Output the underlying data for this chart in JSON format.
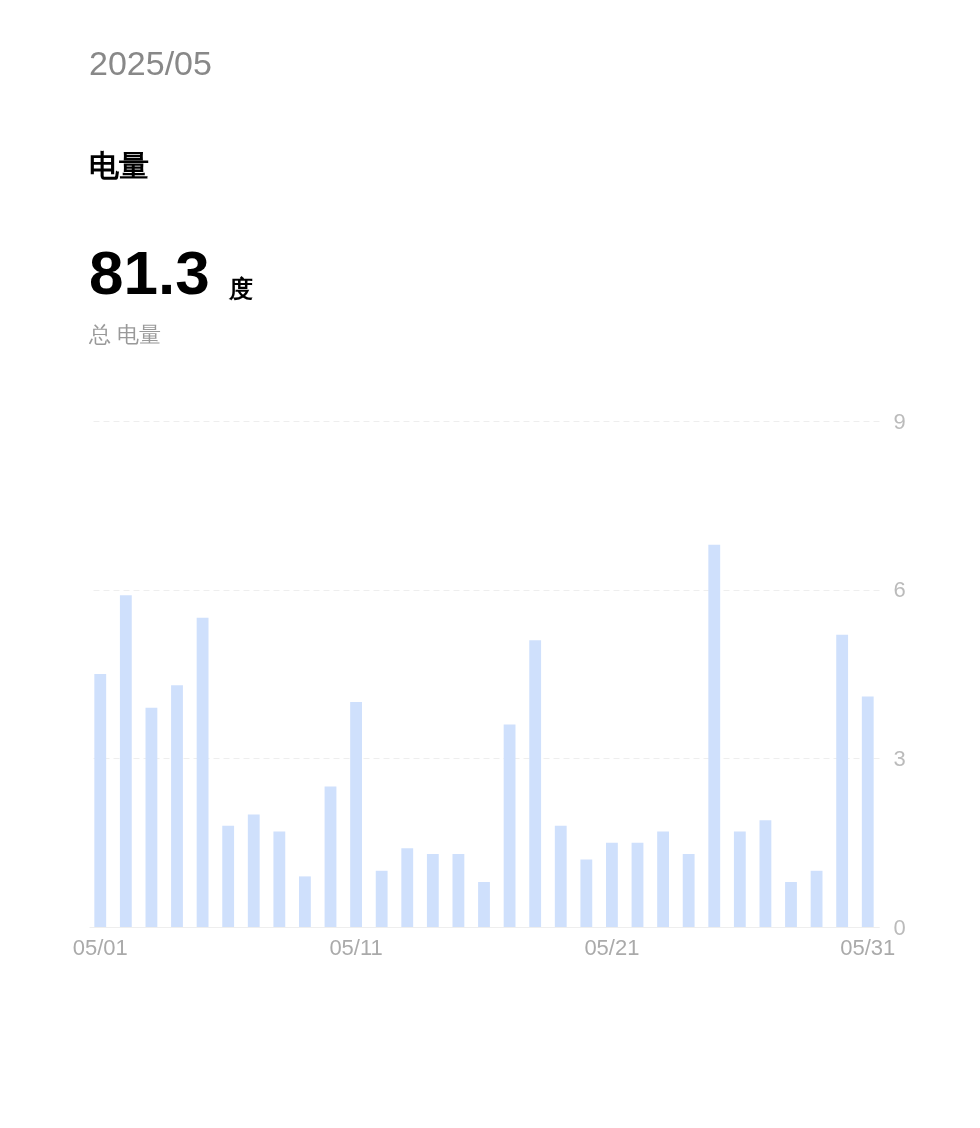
{
  "chart_data": {
    "type": "bar",
    "title": "电量",
    "annotations": [
      "2025/05",
      "81.3",
      "度",
      "总 电量"
    ],
    "categories": [
      "05/01",
      null,
      null,
      null,
      null,
      null,
      null,
      null,
      null,
      null,
      "05/11",
      null,
      null,
      null,
      null,
      null,
      null,
      null,
      null,
      null,
      "05/21",
      null,
      null,
      null,
      null,
      null,
      null,
      null,
      null,
      null,
      "05/31"
    ],
    "values": [
      4.5,
      5.9,
      3.9,
      4.3,
      5.5,
      1.8,
      2.0,
      1.7,
      0.9,
      2.5,
      4.0,
      1.0,
      1.4,
      1.3,
      1.3,
      0.8,
      3.6,
      5.1,
      1.8,
      1.2,
      1.5,
      1.5,
      1.7,
      1.3,
      6.8,
      1.7,
      1.9,
      0.8,
      1.0,
      5.2,
      4.1
    ],
    "color": "#cfe0fc",
    "ylim": [
      0,
      9
    ],
    "yticks": [
      0,
      3,
      6,
      9
    ],
    "grid": "y"
  }
}
